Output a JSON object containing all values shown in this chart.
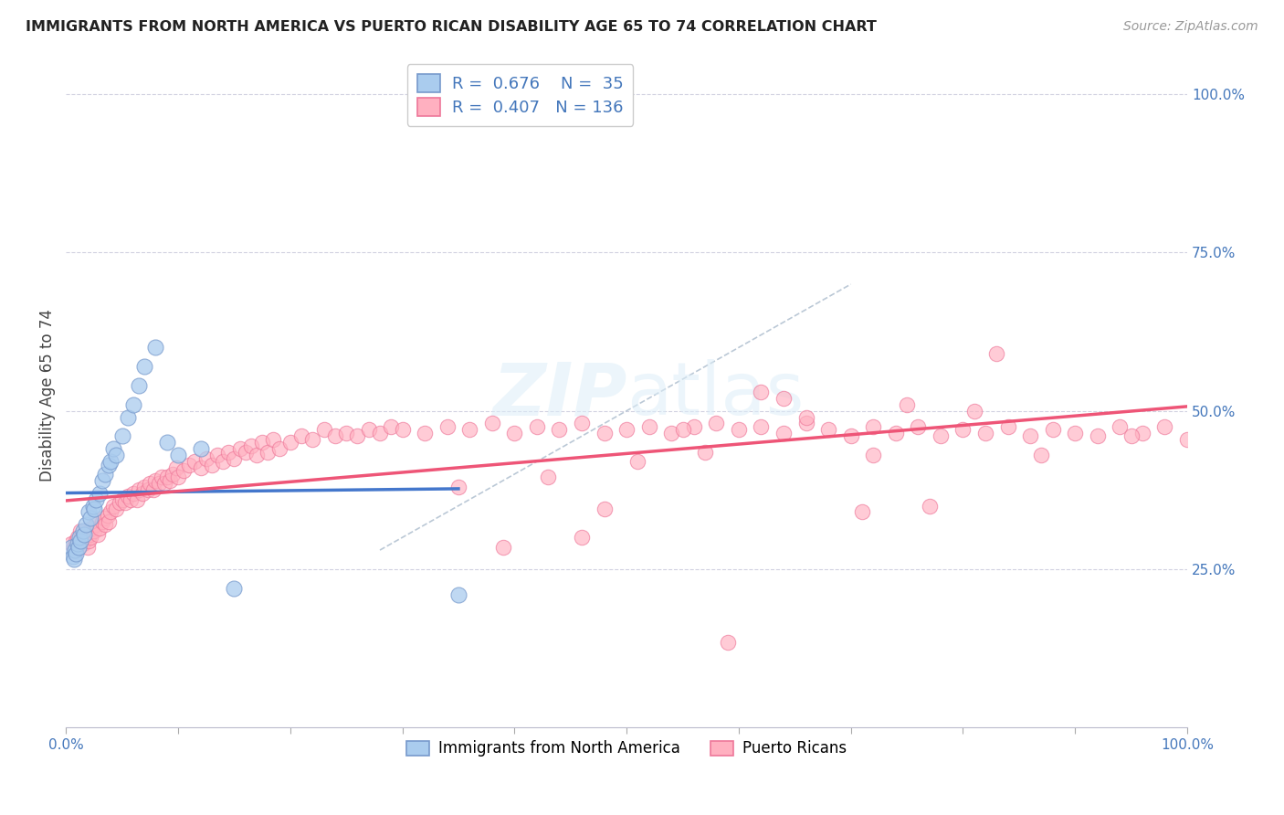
{
  "title": "IMMIGRANTS FROM NORTH AMERICA VS PUERTO RICAN DISABILITY AGE 65 TO 74 CORRELATION CHART",
  "source": "Source: ZipAtlas.com",
  "ylabel": "Disability Age 65 to 74",
  "ylabel_right_ticks": [
    "100.0%",
    "75.0%",
    "50.0%",
    "25.0%"
  ],
  "ylabel_right_tick_positions": [
    1.0,
    0.75,
    0.5,
    0.25
  ],
  "xlim": [
    0.0,
    1.0
  ],
  "ylim": [
    0.0,
    1.05
  ],
  "legend_label1": "Immigrants from North America",
  "legend_label2": "Puerto Ricans",
  "R1": 0.676,
  "N1": 35,
  "R2": 0.407,
  "N2": 136,
  "color_blue_fill": "#AACCEE",
  "color_blue_edge": "#7799CC",
  "color_pink_fill": "#FFB0C0",
  "color_pink_edge": "#EE7799",
  "color_blue_line": "#4477CC",
  "color_pink_line": "#EE5577",
  "color_diag": "#AABBCC",
  "blue_x": [
    0.005,
    0.006,
    0.007,
    0.008,
    0.009,
    0.01,
    0.011,
    0.012,
    0.013,
    0.015,
    0.016,
    0.018,
    0.02,
    0.022,
    0.024,
    0.025,
    0.027,
    0.03,
    0.032,
    0.035,
    0.038,
    0.04,
    0.042,
    0.045,
    0.05,
    0.055,
    0.06,
    0.065,
    0.07,
    0.08,
    0.09,
    0.1,
    0.12,
    0.15,
    0.35
  ],
  "blue_y": [
    0.285,
    0.27,
    0.265,
    0.28,
    0.275,
    0.29,
    0.285,
    0.3,
    0.295,
    0.31,
    0.305,
    0.32,
    0.34,
    0.33,
    0.35,
    0.345,
    0.36,
    0.37,
    0.39,
    0.4,
    0.415,
    0.42,
    0.44,
    0.43,
    0.46,
    0.49,
    0.51,
    0.54,
    0.57,
    0.6,
    0.45,
    0.43,
    0.44,
    0.22,
    0.21
  ],
  "pink_x": [
    0.005,
    0.007,
    0.008,
    0.009,
    0.01,
    0.011,
    0.012,
    0.013,
    0.014,
    0.015,
    0.016,
    0.017,
    0.018,
    0.019,
    0.02,
    0.021,
    0.022,
    0.023,
    0.025,
    0.027,
    0.028,
    0.03,
    0.032,
    0.034,
    0.035,
    0.037,
    0.038,
    0.04,
    0.042,
    0.045,
    0.048,
    0.05,
    0.053,
    0.055,
    0.058,
    0.06,
    0.063,
    0.065,
    0.068,
    0.07,
    0.073,
    0.075,
    0.078,
    0.08,
    0.083,
    0.085,
    0.088,
    0.09,
    0.093,
    0.095,
    0.098,
    0.1,
    0.105,
    0.11,
    0.115,
    0.12,
    0.125,
    0.13,
    0.135,
    0.14,
    0.145,
    0.15,
    0.155,
    0.16,
    0.165,
    0.17,
    0.175,
    0.18,
    0.185,
    0.19,
    0.2,
    0.21,
    0.22,
    0.23,
    0.24,
    0.25,
    0.26,
    0.27,
    0.28,
    0.29,
    0.3,
    0.32,
    0.34,
    0.36,
    0.38,
    0.4,
    0.42,
    0.44,
    0.46,
    0.48,
    0.5,
    0.52,
    0.54,
    0.56,
    0.58,
    0.6,
    0.62,
    0.64,
    0.66,
    0.68,
    0.7,
    0.72,
    0.74,
    0.76,
    0.78,
    0.8,
    0.82,
    0.84,
    0.86,
    0.88,
    0.9,
    0.92,
    0.94,
    0.96,
    0.98,
    1.0,
    0.43,
    0.55,
    0.35,
    0.48,
    0.62,
    0.75,
    0.83,
    0.39,
    0.57,
    0.64,
    0.71,
    0.81,
    0.87,
    0.95,
    0.77,
    0.51,
    0.46,
    0.66,
    0.59,
    0.72
  ],
  "pink_y": [
    0.29,
    0.285,
    0.275,
    0.295,
    0.3,
    0.285,
    0.295,
    0.31,
    0.3,
    0.29,
    0.295,
    0.305,
    0.31,
    0.285,
    0.295,
    0.305,
    0.3,
    0.315,
    0.31,
    0.32,
    0.305,
    0.315,
    0.325,
    0.33,
    0.32,
    0.335,
    0.325,
    0.34,
    0.35,
    0.345,
    0.355,
    0.36,
    0.355,
    0.365,
    0.36,
    0.37,
    0.36,
    0.375,
    0.37,
    0.38,
    0.375,
    0.385,
    0.375,
    0.39,
    0.385,
    0.395,
    0.385,
    0.395,
    0.39,
    0.4,
    0.41,
    0.395,
    0.405,
    0.415,
    0.42,
    0.41,
    0.425,
    0.415,
    0.43,
    0.42,
    0.435,
    0.425,
    0.44,
    0.435,
    0.445,
    0.43,
    0.45,
    0.435,
    0.455,
    0.44,
    0.45,
    0.46,
    0.455,
    0.47,
    0.46,
    0.465,
    0.46,
    0.47,
    0.465,
    0.475,
    0.47,
    0.465,
    0.475,
    0.47,
    0.48,
    0.465,
    0.475,
    0.47,
    0.48,
    0.465,
    0.47,
    0.475,
    0.465,
    0.475,
    0.48,
    0.47,
    0.475,
    0.465,
    0.48,
    0.47,
    0.46,
    0.475,
    0.465,
    0.475,
    0.46,
    0.47,
    0.465,
    0.475,
    0.46,
    0.47,
    0.465,
    0.46,
    0.475,
    0.465,
    0.475,
    0.455,
    0.395,
    0.47,
    0.38,
    0.345,
    0.53,
    0.51,
    0.59,
    0.285,
    0.435,
    0.52,
    0.34,
    0.5,
    0.43,
    0.46,
    0.35,
    0.42,
    0.3,
    0.49,
    0.135,
    0.43
  ]
}
